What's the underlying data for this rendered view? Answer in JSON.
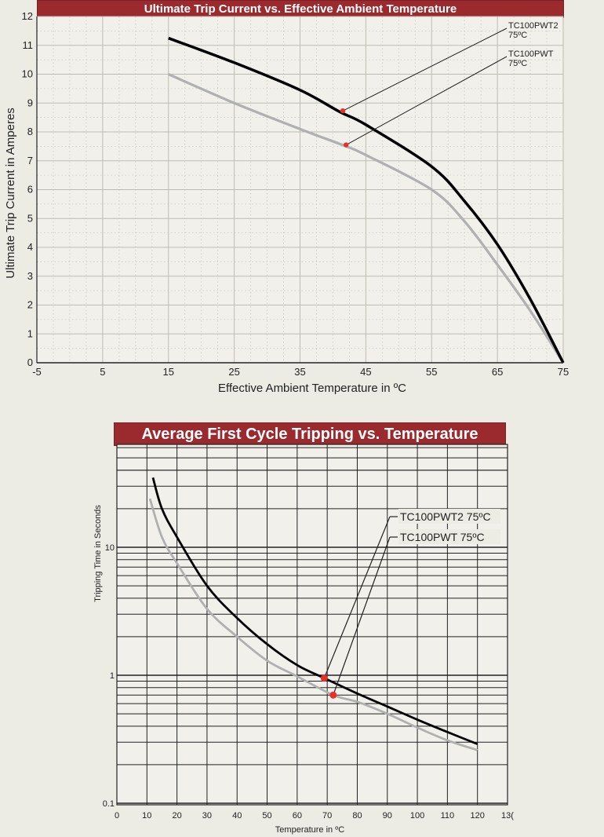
{
  "chart_data": [
    {
      "type": "line",
      "title": "Ultimate Trip Current vs. Effective Ambient Temperature",
      "xlabel": "Effective Ambient Temperature in ºC",
      "ylabel": "Ultimate Trip Current in Amperes",
      "xlim": [
        -5,
        75
      ],
      "ylim": [
        0,
        12
      ],
      "x_ticks": [
        -5,
        5,
        15,
        25,
        35,
        45,
        55,
        65,
        75
      ],
      "y_ticks": [
        0,
        1,
        2,
        3,
        4,
        5,
        6,
        7,
        8,
        9,
        10,
        11,
        12
      ],
      "grid": true,
      "series": [
        {
          "name": "TC100PWT2 75ºC",
          "color": "#000000",
          "x": [
            15,
            25,
            35,
            41,
            45,
            55,
            60,
            65,
            70,
            75
          ],
          "y": [
            11.25,
            10.4,
            9.45,
            8.7,
            8.25,
            6.8,
            5.6,
            4.1,
            2.2,
            0
          ]
        },
        {
          "name": "TC100PWT 75ºC",
          "color": "#b0b0b0",
          "x": [
            15,
            25,
            35,
            42,
            45,
            55,
            60,
            65,
            70,
            75
          ],
          "y": [
            10,
            9.0,
            8.1,
            7.5,
            7.2,
            6.0,
            4.9,
            3.4,
            1.8,
            0
          ]
        }
      ],
      "markers": [
        {
          "series": 0,
          "x": 41.5,
          "y": 8.73,
          "color": "#e8302a"
        },
        {
          "series": 1,
          "x": 42,
          "y": 7.55,
          "color": "#e8302a"
        }
      ],
      "annotations": [
        {
          "line1": "TC100PWT2",
          "line2": "75ºC"
        },
        {
          "line1": "TC100PWT",
          "line2": "75ºC"
        }
      ]
    },
    {
      "type": "line",
      "title": "Average First Cycle Tripping vs. Temperature",
      "xlabel": "Temperature in ºC",
      "ylabel": "Tripping Time in Seconds",
      "xlim": [
        0,
        130
      ],
      "ylim": [
        0.1,
        50
      ],
      "yscale": "log",
      "x_ticks": [
        "0",
        "10",
        "20",
        "30",
        "40",
        "50",
        "60",
        "70",
        "80",
        "90",
        "100",
        "110",
        "120",
        "13("
      ],
      "y_ticks": [
        "0.1",
        "1",
        "10"
      ],
      "grid": true,
      "series": [
        {
          "name": "TC100PWT2 75ºC",
          "color": "#000000",
          "x": [
            12,
            15,
            20,
            30,
            40,
            50,
            60,
            69,
            80,
            90,
            100,
            110,
            120
          ],
          "y": [
            35,
            20,
            12,
            5.0,
            2.8,
            1.75,
            1.2,
            0.95,
            0.72,
            0.57,
            0.45,
            0.36,
            0.29
          ]
        },
        {
          "name": "TC100PWT 75ºC",
          "color": "#b0b0b0",
          "x": [
            11,
            15,
            20,
            30,
            40,
            50,
            60,
            72,
            80,
            90,
            100,
            110,
            120
          ],
          "y": [
            24,
            12,
            7.5,
            3.3,
            2.0,
            1.3,
            0.98,
            0.7,
            0.62,
            0.5,
            0.39,
            0.31,
            0.26
          ]
        }
      ],
      "markers": [
        {
          "series": 0,
          "x": 69,
          "y": 0.95,
          "color": "#e8302a"
        },
        {
          "series": 1,
          "x": 72,
          "y": 0.7,
          "color": "#e8302a"
        }
      ],
      "annotations": [
        {
          "text": "TC100PWT2 75ºC"
        },
        {
          "text": "TC100PWT 75ºC"
        }
      ]
    }
  ]
}
